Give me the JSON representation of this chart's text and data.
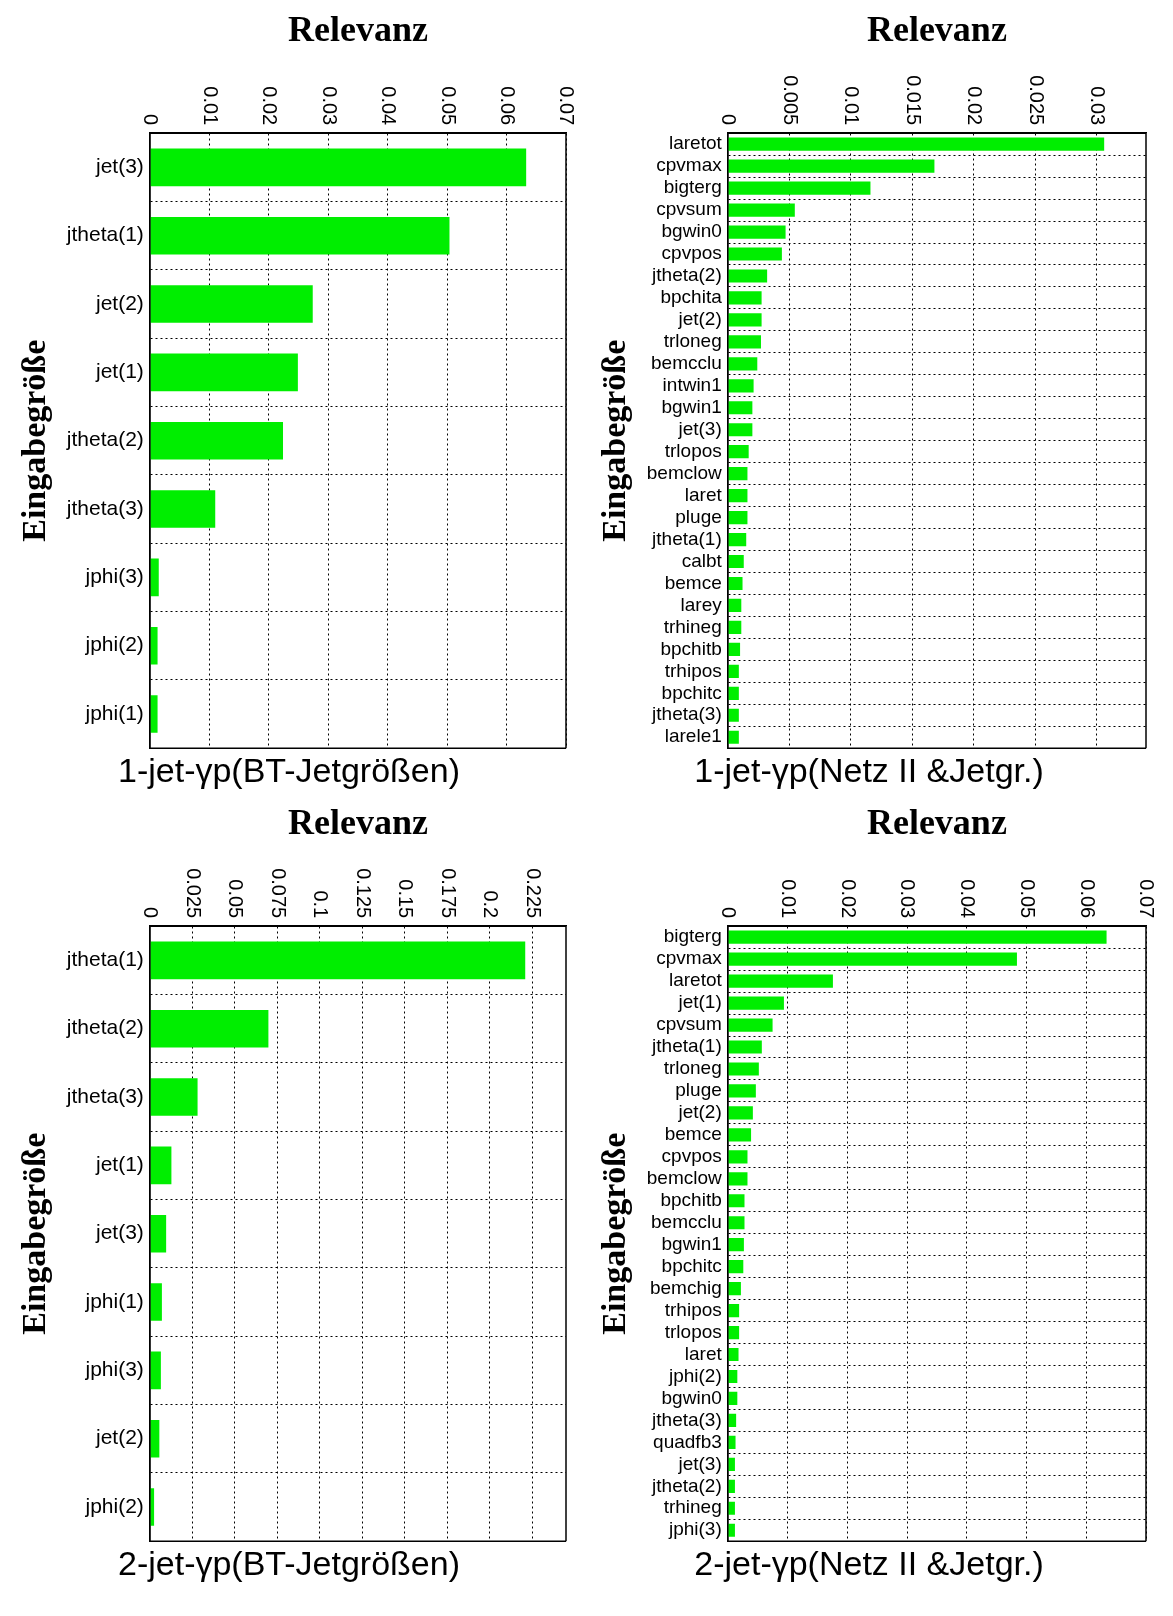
{
  "chart_data": [
    {
      "type": "bar",
      "orientation": "horizontal",
      "title": "1-jet-γp(BT-Jetgrößen)",
      "xlabel": "Relevanz",
      "ylabel": "Eingabegröße",
      "categories": [
        "jet(3)",
        "jtheta(1)",
        "jet(2)",
        "jet(1)",
        "jtheta(2)",
        "jtheta(3)",
        "jphi(3)",
        "jphi(2)",
        "jphi(1)"
      ],
      "values": [
        0.0633,
        0.0504,
        0.0274,
        0.0249,
        0.0224,
        0.011,
        0.0015,
        0.0013,
        0.0013
      ],
      "color": "#00ee00",
      "xlim": [
        0,
        0.07
      ],
      "xticks": [
        0,
        0.01,
        0.02,
        0.03,
        0.04,
        0.05,
        0.06,
        0.07
      ],
      "grid": true
    },
    {
      "type": "bar",
      "orientation": "horizontal",
      "title": "1-jet-γp(Netz II &Jetgr.)",
      "xlabel": "Relevanz",
      "ylabel": "Eingabegröße",
      "categories": [
        "laretot",
        "cpvmax",
        "bigterg",
        "cpvsum",
        "bgwin0",
        "cpvpos",
        "jtheta(2)",
        "bpchita",
        "jet(2)",
        "trloneg",
        "bemcclu",
        "intwin1",
        "bgwin1",
        "jet(3)",
        "trlopos",
        "bemclow",
        "laret",
        "pluge",
        "jtheta(1)",
        "calbt",
        "bemce",
        "larey",
        "trhineg",
        "bpchitb",
        "trhipos",
        "bpchitc",
        "jtheta(3)",
        "larele1"
      ],
      "values": [
        0.0306,
        0.0168,
        0.0116,
        0.00545,
        0.0047,
        0.0044,
        0.0032,
        0.00275,
        0.00275,
        0.0027,
        0.0024,
        0.0021,
        0.002,
        0.002,
        0.0017,
        0.0016,
        0.0016,
        0.0016,
        0.0015,
        0.0013,
        0.0012,
        0.0011,
        0.0011,
        0.001,
        0.0009,
        0.0009,
        0.0009,
        0.0009
      ],
      "color": "#00ee00",
      "xlim": [
        0,
        0.034
      ],
      "xticks": [
        0,
        0.005,
        0.01,
        0.015,
        0.02,
        0.025,
        0.03
      ],
      "grid": true
    },
    {
      "type": "bar",
      "orientation": "horizontal",
      "title": "2-jet-γp(BT-Jetgrößen)",
      "xlabel": "Relevanz",
      "ylabel": "Eingabegröße",
      "categories": [
        "jtheta(1)",
        "jtheta(2)",
        "jtheta(3)",
        "jet(1)",
        "jet(3)",
        "jphi(1)",
        "jphi(3)",
        "jet(2)",
        "jphi(2)"
      ],
      "values": [
        0.221,
        0.0698,
        0.0281,
        0.0127,
        0.0096,
        0.0071,
        0.0065,
        0.0056,
        0.0025
      ],
      "color": "#00ee00",
      "xlim": [
        0,
        0.245
      ],
      "xticks": [
        0,
        0.025,
        0.05,
        0.075,
        0.1,
        0.125,
        0.15,
        0.175,
        0.2,
        0.225
      ],
      "grid": true
    },
    {
      "type": "bar",
      "orientation": "horizontal",
      "title": "2-jet-γp(Netz II &Jetgr.)",
      "xlabel": "Relevanz",
      "ylabel": "Eingabegröße",
      "categories": [
        "bigterg",
        "cpvmax",
        "laretot",
        "jet(1)",
        "cpvsum",
        "jtheta(1)",
        "trloneg",
        "pluge",
        "jet(2)",
        "bemce",
        "cpvpos",
        "bemclow",
        "bpchitb",
        "bemcclu",
        "bgwin1",
        "bpchitc",
        "bemchig",
        "trhipos",
        "trlopos",
        "laret",
        "jphi(2)",
        "bgwin0",
        "jtheta(3)",
        "quadfb3",
        "jet(3)",
        "jtheta(2)",
        "trhineg",
        "jphi(3)"
      ],
      "values": [
        0.0634,
        0.0484,
        0.0176,
        0.0094,
        0.0075,
        0.0057,
        0.0052,
        0.0047,
        0.0042,
        0.0039,
        0.0033,
        0.0033,
        0.0028,
        0.0028,
        0.0027,
        0.0026,
        0.0022,
        0.0019,
        0.0019,
        0.0018,
        0.0016,
        0.0016,
        0.0014,
        0.0013,
        0.0012,
        0.0012,
        0.0012,
        0.0012
      ],
      "color": "#00ee00",
      "xlim": [
        0,
        0.07
      ],
      "xticks": [
        0,
        0.01,
        0.02,
        0.03,
        0.04,
        0.05,
        0.06,
        0.07
      ],
      "grid": true
    }
  ]
}
